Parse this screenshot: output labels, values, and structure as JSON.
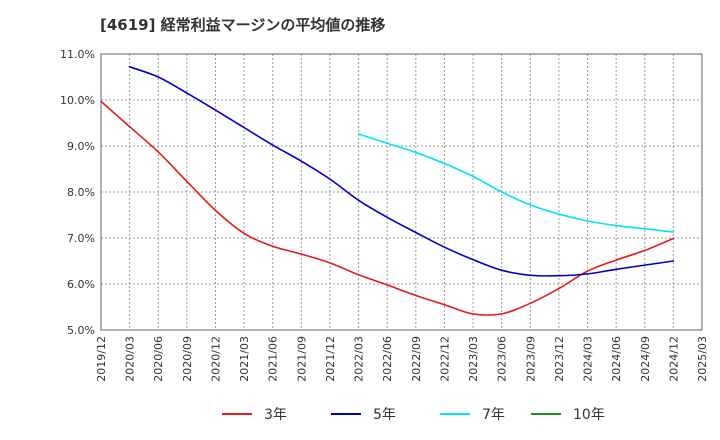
{
  "chart_data": {
    "type": "line",
    "title": "[4619]  経常利益マージンの平均値の推移",
    "xlabel": "",
    "ylabel": "",
    "ylim": [
      5.0,
      11.0
    ],
    "y_ticks": [
      "5.0%",
      "6.0%",
      "7.0%",
      "8.0%",
      "9.0%",
      "10.0%",
      "11.0%"
    ],
    "x_ticks": [
      "2019/12",
      "2020/03",
      "2020/06",
      "2020/09",
      "2020/12",
      "2021/03",
      "2021/06",
      "2021/09",
      "2021/12",
      "2022/03",
      "2022/06",
      "2022/09",
      "2022/12",
      "2023/03",
      "2023/06",
      "2023/09",
      "2023/12",
      "2024/03",
      "2024/06",
      "2024/09",
      "2024/12",
      "2025/03"
    ],
    "grid": true,
    "legend_position": "bottom",
    "series": [
      {
        "name": "3年",
        "color": "#e41a1c",
        "start_index": 0,
        "values": [
          9.97,
          9.42,
          8.87,
          8.23,
          7.6,
          7.1,
          6.82,
          6.65,
          6.46,
          6.2,
          5.98,
          5.75,
          5.55,
          5.35,
          5.35,
          5.58,
          5.9,
          6.28,
          6.52,
          6.73,
          6.99
        ]
      },
      {
        "name": "5年",
        "color": "#0000cc",
        "start_index": 1,
        "values": [
          10.72,
          10.5,
          10.15,
          9.78,
          9.4,
          9.02,
          8.67,
          8.28,
          7.82,
          7.45,
          7.12,
          6.8,
          6.53,
          6.3,
          6.19,
          6.18,
          6.22,
          6.32,
          6.41,
          6.5
        ]
      },
      {
        "name": "7年",
        "color": "#00e5ee",
        "start_index": 9,
        "values": [
          9.26,
          9.06,
          8.86,
          8.62,
          8.34,
          8.0,
          7.72,
          7.52,
          7.37,
          7.27,
          7.2,
          7.13
        ]
      },
      {
        "name": "10年",
        "color": "#228b22",
        "start_index": 0,
        "values": []
      }
    ]
  }
}
